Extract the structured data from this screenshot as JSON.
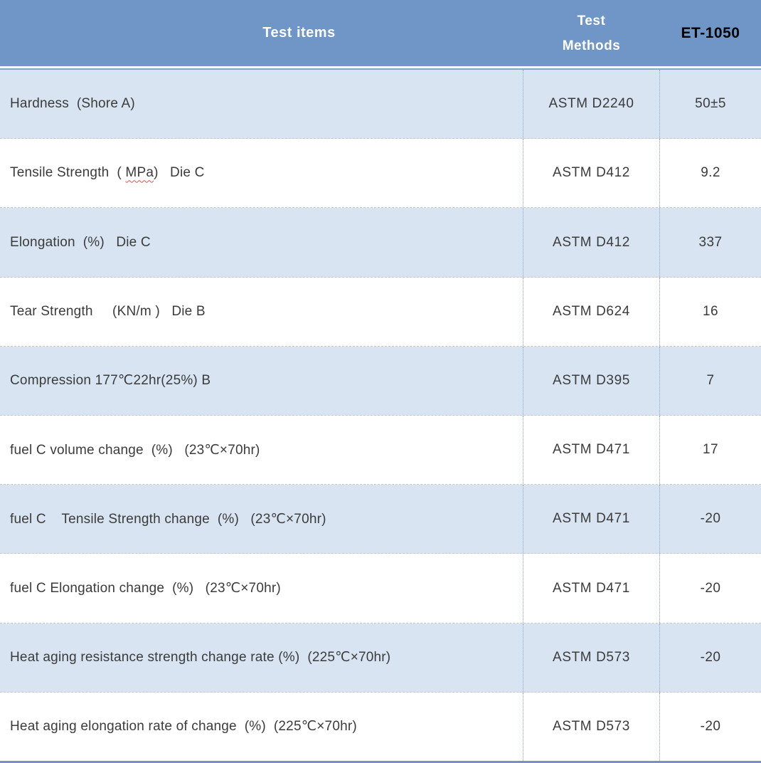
{
  "theme": {
    "accent_color": "#6f96c6",
    "accent_light": "#7fa5d1",
    "row_alt_color": "#d8e4f1",
    "column_divider_color": "#84a5cf",
    "row_separator_color": "#c8c8c8",
    "text_color": "#3b3b3b",
    "header_text_color": "#ffffff",
    "product_header_text_color": "#000000",
    "spellcheck_squiggle_color": "#d9534a"
  },
  "table": {
    "header": {
      "items": "Test items",
      "methods": "Test Methods",
      "product": "ET-1050"
    },
    "rows": [
      {
        "item": "Hardness  (Shore A)",
        "method": "ASTM D2240",
        "value": "50±5"
      },
      {
        "item_pre": "Tensile Strength  ( ",
        "item_err": "MPa",
        "item_post": ")   Die C",
        "method": "ASTM D412",
        "value": "9.2"
      },
      {
        "item": "Elongation  (%)   Die C",
        "method": "ASTM D412",
        "value": "337"
      },
      {
        "item": "Tear Strength     (KN/m )   Die B",
        "method": "ASTM D624",
        "value": "16"
      },
      {
        "item": "Compression 177℃22hr(25%) B",
        "method": "ASTM D395",
        "value": "7"
      },
      {
        "item": "fuel C volume change  (%)   (23℃×70hr)",
        "method": "ASTM D471",
        "value": "17"
      },
      {
        "item": "fuel C    Tensile Strength change  (%)   (23℃×70hr)",
        "method": "ASTM D471",
        "value": "-20"
      },
      {
        "item": "fuel C Elongation change  (%)   (23℃×70hr)",
        "method": "ASTM D471",
        "value": "-20"
      },
      {
        "item": "Heat aging resistance strength change rate (%)  (225℃×70hr)",
        "method": "ASTM D573",
        "value": "-20"
      },
      {
        "item": "Heat aging elongation rate of change  (%)  (225℃×70hr)",
        "method": "ASTM D573",
        "value": "-20"
      }
    ]
  }
}
